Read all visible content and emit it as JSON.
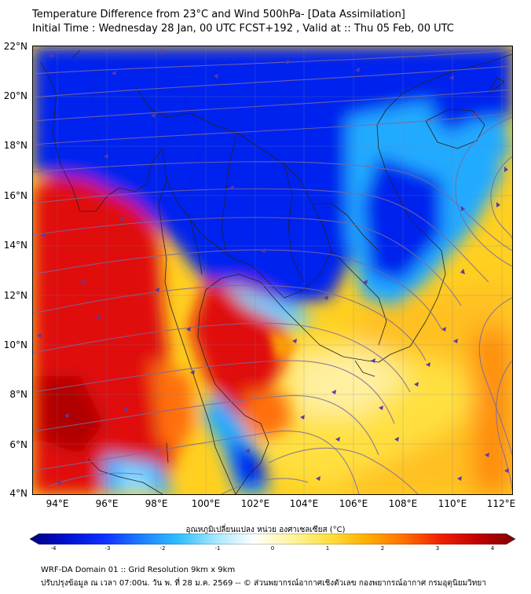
{
  "header": {
    "title_line1": "Temperature Difference from 23°C and Wind 500hPa- [Data Assimilation]",
    "title_line2": "Initial Time : Wednesday 28 Jan, 00 UTC FCST+192 , Valid at ::  Thu 05 Feb, 00 UTC"
  },
  "map": {
    "lat_labels": [
      "22°N",
      "20°N",
      "18°N",
      "16°N",
      "14°N",
      "12°N",
      "10°N",
      "8°N",
      "6°N",
      "4°N"
    ],
    "lon_labels": [
      "94°E",
      "96°E",
      "98°E",
      "100°E",
      "102°E",
      "104°E",
      "106°E",
      "108°E",
      "110°E",
      "112°E"
    ],
    "extent": {
      "lon_min": 93.0,
      "lon_max": 112.5,
      "lat_min": 4.0,
      "lat_max": 22.0
    },
    "colors": {
      "deep_blue": "#0022ee",
      "light_blue": "#22aaff",
      "pale": "#fff4a0",
      "yellow": "#ffd020",
      "orange": "#ff7a10",
      "red": "#e01010",
      "deep_red": "#a80000",
      "streamline": "#7a6aa0",
      "arrow": "#5a3aa8",
      "border": "#222222"
    }
  },
  "colorbar": {
    "title": "อุณหภูมิเปลี่ยนแปลง หน่วย องศาเซลเซียส (°C)",
    "ticks": [
      "-4",
      "-3",
      "-2",
      "-1",
      "0",
      "1",
      "2",
      "3",
      "4"
    ],
    "min": -4,
    "max": 4,
    "stops": [
      "#000080",
      "#0010d0",
      "#1030ff",
      "#1c80ff",
      "#30c0ff",
      "#a8e8ff",
      "#ffffff",
      "#fff4a0",
      "#ffe040",
      "#ffb000",
      "#ff7000",
      "#f02000",
      "#c00000",
      "#800000"
    ]
  },
  "footer": {
    "line1": "WRF-DA Domain 01 :: Grid Resolution 9km x 9km",
    "line2": "ปรับปรุงข้อมูล ณ เวลา 07:00น. วัน พ. ที่ 28 ม.ค. 2569 -- © ส่วนพยากรณ์อากาศเชิงตัวเลข กองพยากรณ์อากาศ กรมอุตุนิยมวิทยา"
  }
}
